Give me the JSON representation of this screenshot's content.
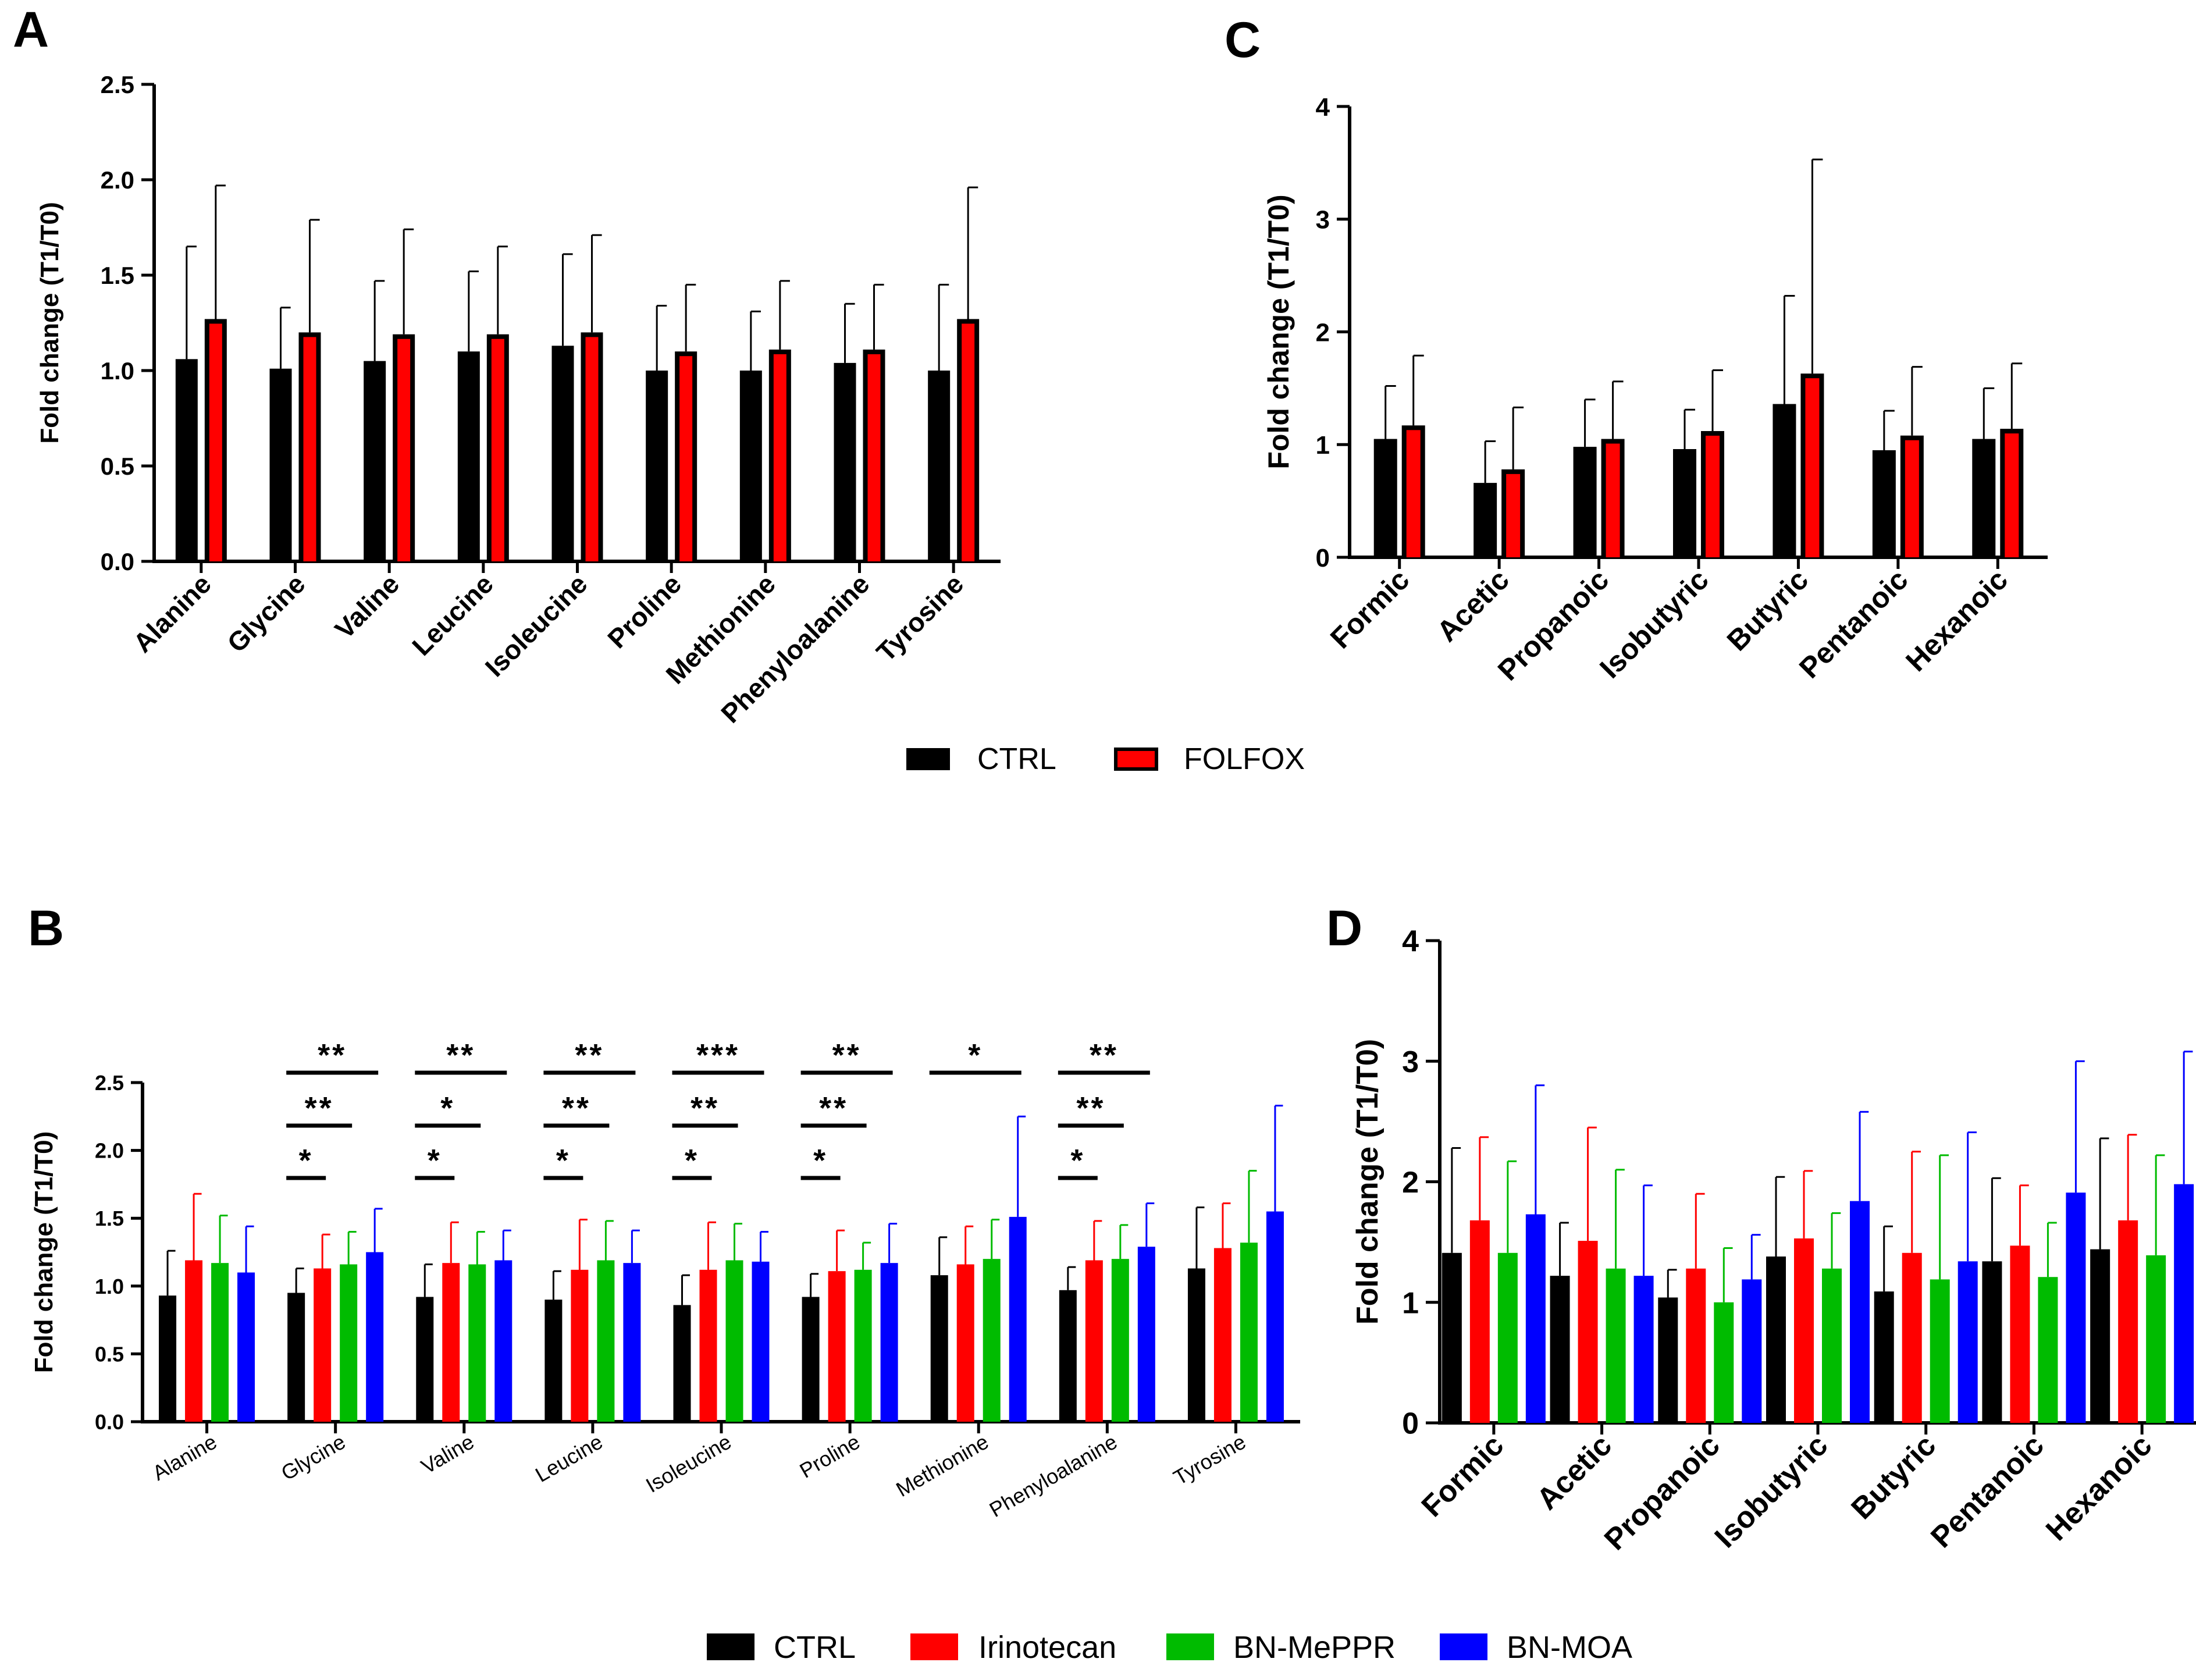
{
  "panels": {
    "A": "A",
    "B": "B",
    "C": "C",
    "D": "D"
  },
  "legend_top": {
    "items": [
      {
        "label": "CTRL",
        "color": "#000000",
        "border": "#000000"
      },
      {
        "label": "FOLFOX",
        "color": "#ff0000",
        "border": "#000000"
      }
    ]
  },
  "legend_bottom": {
    "items": [
      {
        "label": "CTRL",
        "color": "#000000"
      },
      {
        "label": "Irinotecan",
        "color": "#ff0000"
      },
      {
        "label": "BN-MePPR",
        "color": "#00bb00"
      },
      {
        "label": "BN-MOA",
        "color": "#0000ff"
      }
    ]
  },
  "chart_data": [
    {
      "id": "A",
      "type": "bar",
      "title": "",
      "xlabel": "",
      "ylabel": "Fold change (T1/T0)",
      "ylim": [
        0,
        2.5
      ],
      "yticks": [
        0.0,
        0.5,
        1.0,
        1.5,
        2.0,
        2.5
      ],
      "ytick_labels": [
        "0.0",
        "0.5",
        "1.0",
        "1.5",
        "2.0",
        "2.5"
      ],
      "categories": [
        "Alanine",
        "Glycine",
        "Valine",
        "Leucine",
        "Isoleucine",
        "Proline",
        "Methionine",
        "Phenyloalanine",
        "Tyrosine"
      ],
      "series": [
        {
          "name": "CTRL",
          "color": "#000000",
          "values": [
            1.06,
            1.01,
            1.05,
            1.1,
            1.13,
            1.0,
            1.0,
            1.04,
            1.0
          ],
          "errors": [
            0.59,
            0.32,
            0.42,
            0.42,
            0.48,
            0.34,
            0.31,
            0.31,
            0.45
          ]
        },
        {
          "name": "FOLFOX",
          "color": "#ff0000",
          "values": [
            1.27,
            1.2,
            1.19,
            1.19,
            1.2,
            1.1,
            1.11,
            1.11,
            1.27
          ],
          "errors": [
            0.7,
            0.59,
            0.55,
            0.46,
            0.51,
            0.35,
            0.36,
            0.34,
            0.69
          ]
        }
      ]
    },
    {
      "id": "B",
      "type": "bar",
      "title": "",
      "xlabel": "",
      "ylabel": "Fold change (T1/T0)",
      "ylim": [
        0,
        2.5
      ],
      "yticks": [
        0.0,
        0.5,
        1.0,
        1.5,
        2.0,
        2.5
      ],
      "ytick_labels": [
        "0.0",
        "0.5",
        "1.0",
        "1.5",
        "2.0",
        "2.5"
      ],
      "categories": [
        "Alanine",
        "Glycine",
        "Valine",
        "Leucine",
        "Isoleucine",
        "Proline",
        "Methionine",
        "Phenyloalanine",
        "Tyrosine"
      ],
      "series": [
        {
          "name": "CTRL",
          "color": "#000000",
          "values": [
            0.93,
            0.95,
            0.92,
            0.9,
            0.86,
            0.92,
            1.08,
            0.97,
            1.13
          ],
          "errors": [
            0.33,
            0.18,
            0.24,
            0.21,
            0.22,
            0.17,
            0.28,
            0.17,
            0.45
          ]
        },
        {
          "name": "Irinotecan",
          "color": "#ff0000",
          "values": [
            1.19,
            1.13,
            1.17,
            1.12,
            1.12,
            1.11,
            1.16,
            1.19,
            1.28
          ],
          "errors": [
            0.49,
            0.25,
            0.3,
            0.37,
            0.35,
            0.3,
            0.28,
            0.29,
            0.33
          ]
        },
        {
          "name": "BN-MePPR",
          "color": "#00bb00",
          "values": [
            1.17,
            1.16,
            1.16,
            1.19,
            1.19,
            1.12,
            1.2,
            1.2,
            1.32
          ],
          "errors": [
            0.35,
            0.24,
            0.24,
            0.29,
            0.27,
            0.2,
            0.29,
            0.25,
            0.53
          ]
        },
        {
          "name": "BN-MOA",
          "color": "#0000ff",
          "values": [
            1.1,
            1.25,
            1.19,
            1.17,
            1.18,
            1.17,
            1.51,
            1.29,
            1.55
          ],
          "errors": [
            0.34,
            0.32,
            0.22,
            0.24,
            0.22,
            0.29,
            0.74,
            0.32,
            0.78
          ]
        }
      ],
      "annotations": [
        {
          "category": "Glycine",
          "rows": [
            {
              "text": "**",
              "span": [
                0,
                3
              ]
            },
            {
              "text": "**",
              "span": [
                0,
                2
              ]
            },
            {
              "text": "*",
              "span": [
                0,
                1
              ]
            }
          ]
        },
        {
          "category": "Valine",
          "rows": [
            {
              "text": "**",
              "span": [
                0,
                3
              ]
            },
            {
              "text": "*",
              "span": [
                0,
                2
              ]
            },
            {
              "text": "*",
              "span": [
                0,
                1
              ]
            }
          ]
        },
        {
          "category": "Leucine",
          "rows": [
            {
              "text": "**",
              "span": [
                0,
                3
              ]
            },
            {
              "text": "**",
              "span": [
                0,
                2
              ]
            },
            {
              "text": "*",
              "span": [
                0,
                1
              ]
            }
          ]
        },
        {
          "category": "Isoleucine",
          "rows": [
            {
              "text": "***",
              "span": [
                0,
                3
              ]
            },
            {
              "text": "**",
              "span": [
                0,
                2
              ]
            },
            {
              "text": "*",
              "span": [
                0,
                1
              ]
            }
          ]
        },
        {
          "category": "Proline",
          "rows": [
            {
              "text": "**",
              "span": [
                0,
                3
              ]
            },
            {
              "text": "**",
              "span": [
                0,
                2
              ]
            },
            {
              "text": "*",
              "span": [
                0,
                1
              ]
            }
          ]
        },
        {
          "category": "Methionine",
          "rows": [
            {
              "text": "*",
              "span": [
                0,
                3
              ]
            }
          ]
        },
        {
          "category": "Phenyloalanine",
          "rows": [
            {
              "text": "**",
              "span": [
                0,
                3
              ]
            },
            {
              "text": "**",
              "span": [
                0,
                2
              ]
            },
            {
              "text": "*",
              "span": [
                0,
                1
              ]
            }
          ]
        }
      ]
    },
    {
      "id": "C",
      "type": "bar",
      "title": "",
      "xlabel": "",
      "ylabel": "Fold change (T1/T0)",
      "ylim": [
        0,
        4
      ],
      "yticks": [
        0,
        1,
        2,
        3,
        4
      ],
      "ytick_labels": [
        "0",
        "1",
        "2",
        "3",
        "4"
      ],
      "categories": [
        "Formic",
        "Acetic",
        "Propanoic",
        "Isobutyric",
        "Butyric",
        "Pentanoic",
        "Hexanoic"
      ],
      "series": [
        {
          "name": "CTRL",
          "color": "#000000",
          "values": [
            1.05,
            0.66,
            0.98,
            0.96,
            1.36,
            0.95,
            1.05
          ],
          "errors": [
            0.47,
            0.37,
            0.42,
            0.35,
            0.96,
            0.35,
            0.45
          ]
        },
        {
          "name": "FOLFOX",
          "color": "#ff0000",
          "values": [
            1.17,
            0.78,
            1.05,
            1.12,
            1.63,
            1.08,
            1.14
          ],
          "errors": [
            0.62,
            0.55,
            0.51,
            0.54,
            1.9,
            0.61,
            0.58
          ]
        }
      ]
    },
    {
      "id": "D",
      "type": "bar",
      "title": "",
      "xlabel": "",
      "ylabel": "Fold change (T1/T0)",
      "ylim": [
        0,
        4
      ],
      "yticks": [
        0,
        1,
        2,
        3,
        4
      ],
      "ytick_labels": [
        "0",
        "1",
        "2",
        "3",
        "4"
      ],
      "categories": [
        "Formic",
        "Acetic",
        "Propanoic",
        "Isobutyric",
        "Butyric",
        "Pentanoic",
        "Hexanoic"
      ],
      "series": [
        {
          "name": "CTRL",
          "color": "#000000",
          "values": [
            1.41,
            1.22,
            1.04,
            1.38,
            1.09,
            1.34,
            1.44
          ],
          "errors": [
            0.87,
            0.44,
            0.23,
            0.66,
            0.54,
            0.69,
            0.92
          ]
        },
        {
          "name": "Irinotecan",
          "color": "#ff0000",
          "values": [
            1.68,
            1.51,
            1.28,
            1.53,
            1.41,
            1.47,
            1.68
          ],
          "errors": [
            0.69,
            0.94,
            0.62,
            0.56,
            0.84,
            0.5,
            0.71
          ]
        },
        {
          "name": "BN-MePPR",
          "color": "#00bb00",
          "values": [
            1.41,
            1.28,
            1.0,
            1.28,
            1.19,
            1.21,
            1.39
          ],
          "errors": [
            0.76,
            0.82,
            0.45,
            0.46,
            1.03,
            0.45,
            0.83
          ]
        },
        {
          "name": "BN-MOA",
          "color": "#0000ff",
          "values": [
            1.73,
            1.22,
            1.19,
            1.84,
            1.34,
            1.91,
            1.98
          ],
          "errors": [
            1.07,
            0.75,
            0.37,
            0.74,
            1.07,
            1.09,
            1.1
          ]
        }
      ]
    }
  ]
}
